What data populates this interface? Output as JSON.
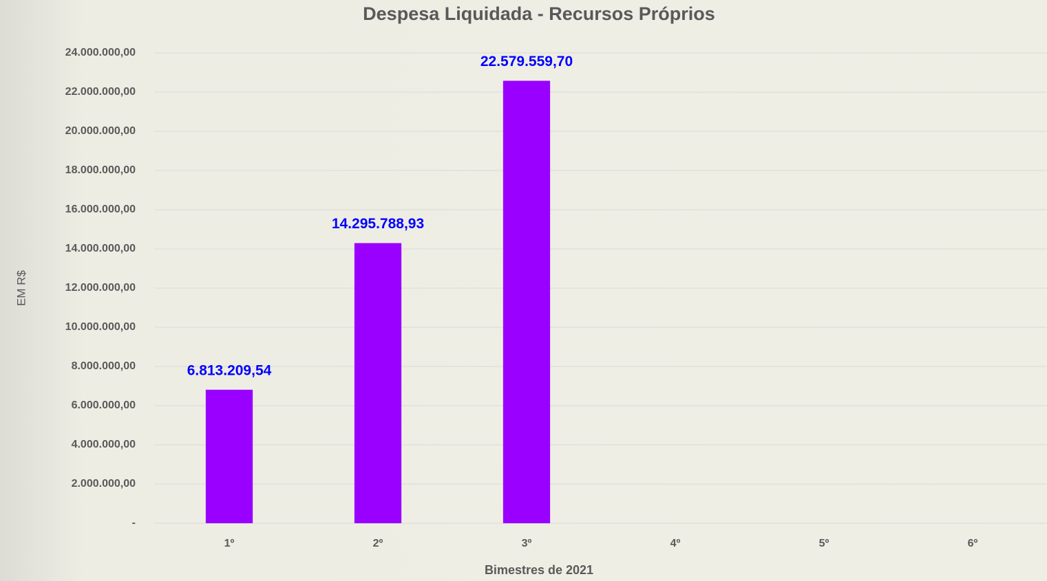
{
  "chart_data": {
    "type": "bar",
    "title": "Despesa Liquidada - Recursos Próprios",
    "x_label": "Bimestres de 2021",
    "y_label": "EM R$",
    "categories": [
      "1º",
      "2º",
      "3º",
      "4º",
      "5º",
      "6º"
    ],
    "values": [
      6813209.54,
      14295788.93,
      22579559.7,
      null,
      null,
      null
    ],
    "value_labels": [
      "6.813.209,54",
      "14.295.788,93",
      "22.579.559,70",
      null,
      null,
      null
    ],
    "color": "#9900ff",
    "label_color": "#0000ff",
    "ylim": [
      0,
      24000000
    ],
    "yticks": [
      {
        "value": 0,
        "label": "-"
      },
      {
        "value": 2000000,
        "label": "2.000.000,00"
      },
      {
        "value": 4000000,
        "label": "4.000.000,00"
      },
      {
        "value": 6000000,
        "label": "6.000.000,00"
      },
      {
        "value": 8000000,
        "label": "8.000.000,00"
      },
      {
        "value": 10000000,
        "label": "10.000.000,00"
      },
      {
        "value": 12000000,
        "label": "12.000.000,00"
      },
      {
        "value": 14000000,
        "label": "14.000.000,00"
      },
      {
        "value": 16000000,
        "label": "16.000.000,00"
      },
      {
        "value": 18000000,
        "label": "18.000.000,00"
      },
      {
        "value": 20000000,
        "label": "20.000.000,00"
      },
      {
        "value": 22000000,
        "label": "22.000.000,00"
      },
      {
        "value": 24000000,
        "label": "24.000.000,00"
      }
    ],
    "grid": true
  }
}
